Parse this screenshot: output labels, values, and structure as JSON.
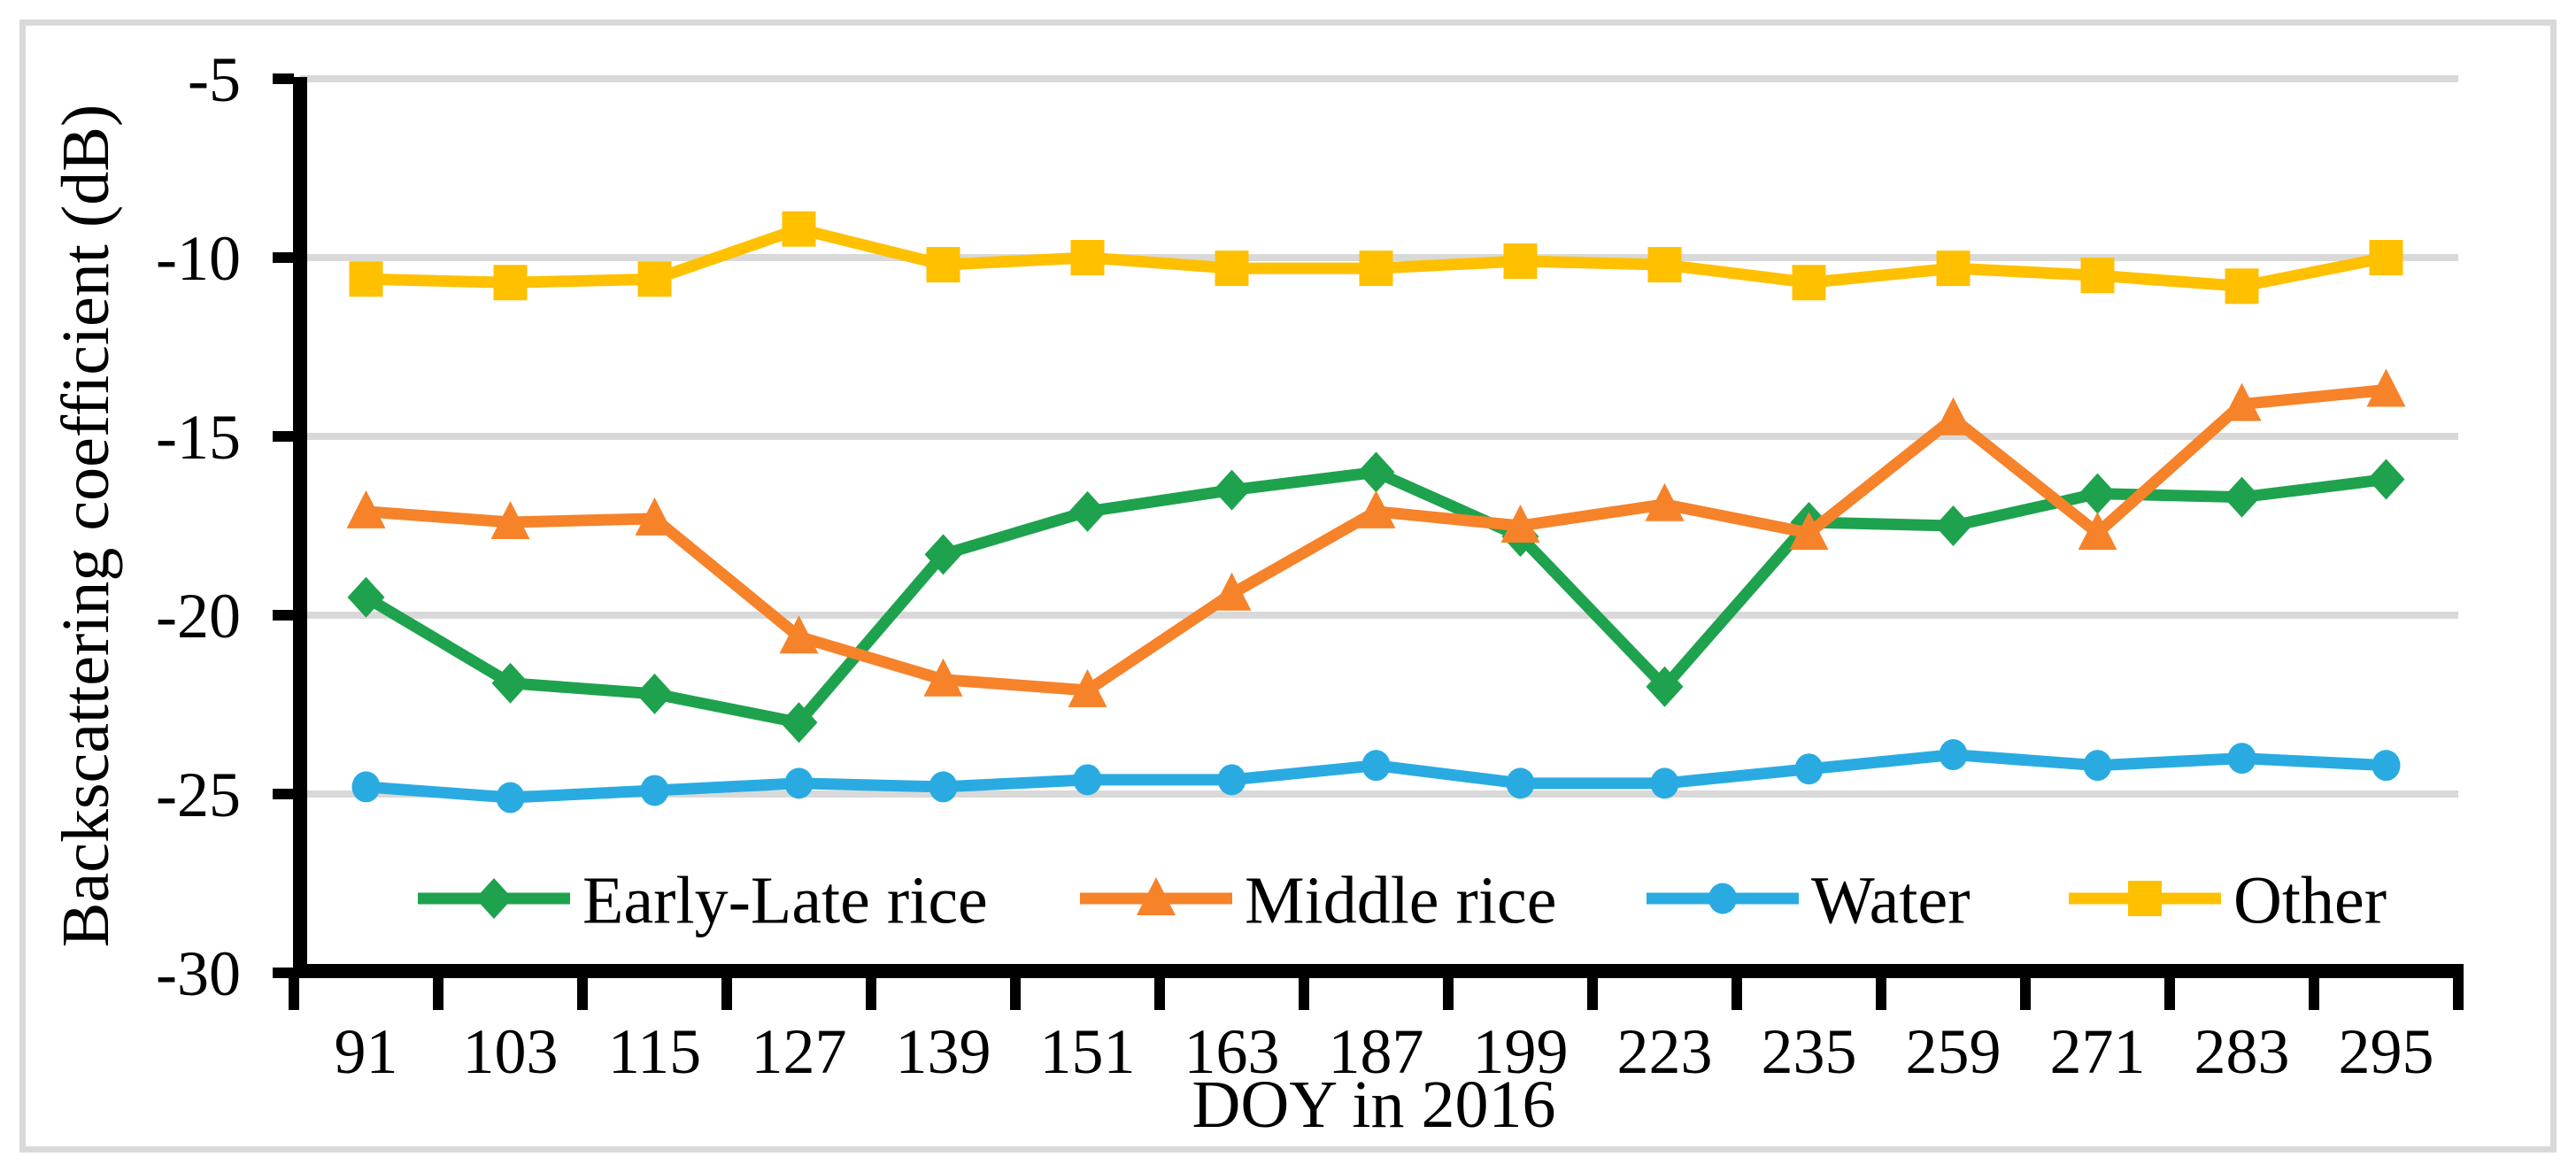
{
  "figure": {
    "background": "#FFFFFF",
    "border_color": "#D9D9D9"
  },
  "chart_data": {
    "type": "line",
    "title": "",
    "xlabel": "DOY in 2016",
    "ylabel": "Backscattering coefficient (dB)",
    "categories": [
      "91",
      "103",
      "115",
      "127",
      "139",
      "151",
      "163",
      "187",
      "199",
      "223",
      "235",
      "259",
      "271",
      "283",
      "295"
    ],
    "y_ticks": [
      -5,
      -10,
      -15,
      -20,
      -25,
      -30
    ],
    "ylim": [
      -30,
      -5
    ],
    "grid": "horizontal-major",
    "grid_color": "#D9D9D9",
    "axis_color": "#000000",
    "legend_position": "inside-bottom",
    "series": [
      {
        "name": "Early-Late rice",
        "marker": "diamond",
        "color": "#1EA24D",
        "values": [
          -19.5,
          -21.9,
          -22.2,
          -23.0,
          -18.3,
          -17.1,
          -16.5,
          -16.0,
          -17.8,
          -22.0,
          -17.4,
          -17.5,
          -16.6,
          -16.7,
          -16.2
        ]
      },
      {
        "name": "Middle rice",
        "marker": "triangle",
        "color": "#F6822A",
        "values": [
          -17.1,
          -17.4,
          -17.3,
          -20.6,
          -21.8,
          -22.1,
          -19.4,
          -17.1,
          -17.5,
          -16.9,
          -17.7,
          -14.5,
          -17.7,
          -14.1,
          -13.7
        ]
      },
      {
        "name": "Water",
        "marker": "circle",
        "color": "#29ABE2",
        "values": [
          -24.8,
          -25.1,
          -24.9,
          -24.7,
          -24.8,
          -24.6,
          -24.6,
          -24.2,
          -24.7,
          -24.7,
          -24.3,
          -23.9,
          -24.2,
          -24.0,
          -24.2
        ]
      },
      {
        "name": "Other",
        "marker": "square",
        "color": "#FFC000",
        "values": [
          -10.6,
          -10.7,
          -10.6,
          -9.2,
          -10.2,
          -10.0,
          -10.3,
          -10.3,
          -10.1,
          -10.2,
          -10.7,
          -10.3,
          -10.5,
          -10.8,
          -10.0
        ]
      }
    ]
  }
}
